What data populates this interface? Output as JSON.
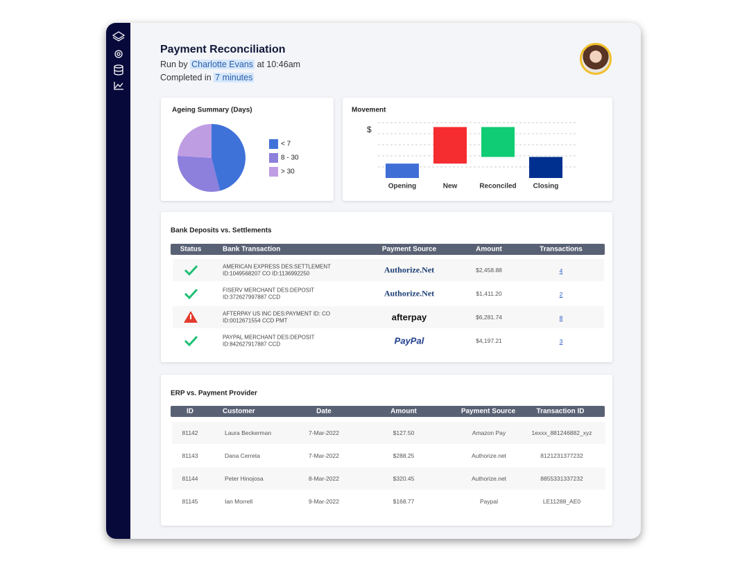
{
  "header": {
    "title": "Payment Reconciliation",
    "run_prefix": "Run by",
    "user": "Charlotte Evans",
    "run_time": "at 10:46am",
    "completed_prefix": "Completed in",
    "duration": "7 minutes"
  },
  "chart_data": [
    {
      "type": "pie",
      "title": "Ageing Summary (Days)",
      "categories": [
        "< 7",
        "8 - 30",
        "> 30"
      ],
      "values": [
        46,
        30,
        24
      ],
      "colors": [
        "#3f72d9",
        "#8d7fdc",
        "#bf9de3"
      ],
      "legend": "right"
    },
    {
      "type": "waterfall",
      "title": "Movement",
      "y_label": "$",
      "categories": [
        "Opening",
        "New",
        "Reconciled",
        "Closing"
      ],
      "values": [
        1.3,
        3.3,
        -2.7,
        1.9
      ],
      "is_total": [
        true,
        false,
        false,
        true
      ],
      "colors": [
        "#3f6fd6",
        "#f52d30",
        "#10cc74",
        "#00308f"
      ],
      "ylim": [
        0,
        5
      ],
      "yticks": [
        1,
        2,
        3,
        4,
        5
      ],
      "grid": true
    }
  ],
  "bank_table": {
    "title": "Bank Deposits vs. Settlements",
    "columns": [
      "Status",
      "Bank Transaction",
      "Payment Source",
      "Amount",
      "Transactions"
    ],
    "rows": [
      {
        "status": "ok",
        "transaction": [
          "AMERICAN EXPRESS DES:SETTLEMENT",
          "ID:1049568207 CO ID:1136992250"
        ],
        "source": "Authorize.Net",
        "amount": "$2,458.88",
        "transactions": "4"
      },
      {
        "status": "ok",
        "transaction": [
          "FISERV MERCHANT DES:DEPOSIT",
          "ID:372627997887 CCD"
        ],
        "source": "Authorize.Net",
        "amount": "$1,411.20",
        "transactions": "2"
      },
      {
        "status": "warning",
        "transaction": [
          "AFTERPAY US INC DES:PAYMENT ID: CO",
          "ID:0012671554 CCD PMT"
        ],
        "source": "afterpay",
        "amount": "$6,281.74",
        "transactions": "8"
      },
      {
        "status": "ok",
        "transaction": [
          "PAYPAL MERCHANT DES:DEPOSIT",
          "ID:842627917887 CCD"
        ],
        "source": "PayPal",
        "amount": "$4,197.21",
        "transactions": "3"
      }
    ]
  },
  "erp_table": {
    "title": "ERP vs. Payment Provider",
    "columns": [
      "ID",
      "Customer",
      "Date",
      "Amount",
      "Payment Source",
      "Transaction ID"
    ],
    "rows": [
      [
        "81142",
        "Laura Beckerman",
        "7-Mar-2022",
        "$127.50",
        "Amazon Pay",
        "1exxx_881246882_xyz"
      ],
      [
        "81143",
        "Dana Cerreta",
        "7-Mar-2022",
        "$288.25",
        "Authorize.net",
        "8121231377232"
      ],
      [
        "81144",
        "Peter Hinojosa",
        "8-Mar-2022",
        "$320.45",
        "Authorize.net",
        "8855331337232"
      ],
      [
        "81145",
        "Ian Morrell",
        "9-Mar-2022",
        "$168.77",
        "Paypal",
        "LE11288_AE0"
      ]
    ]
  }
}
